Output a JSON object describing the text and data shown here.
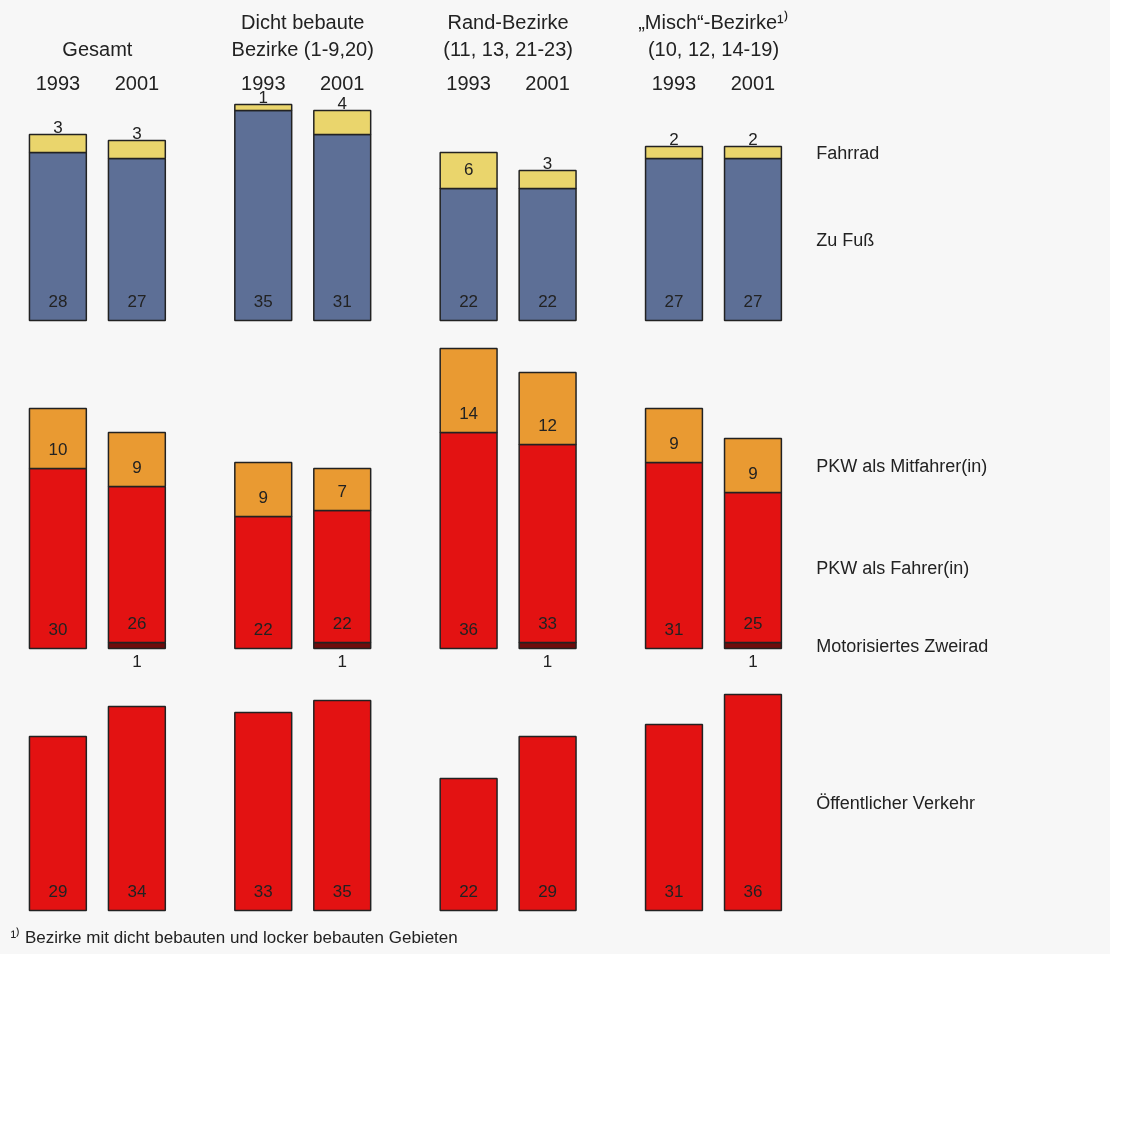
{
  "chart_data": [
    {
      "type": "bar",
      "stacked": true,
      "data_labels": true,
      "categories": [
        "1993",
        "2001",
        "1993",
        "2001",
        "1993",
        "2001",
        "1993",
        "2001"
      ],
      "annotations": [
        "Gesamt",
        "Dicht bebaute\nBezirke (1-9,20)",
        "Rand-Bezirke\n(11, 13, 21-23)",
        "„Misch“-Bezirke¹⁾\n(10, 12, 14-19)"
      ],
      "series": [
        {
          "name": "Zu Fuß",
          "color": "#5d6f96",
          "values": [
            28,
            27,
            35,
            31,
            22,
            22,
            27,
            27
          ]
        },
        {
          "name": "Fahrrad",
          "color": "#ead56c",
          "values": [
            3,
            3,
            1,
            4,
            6,
            3,
            2,
            2
          ]
        }
      ]
    },
    {
      "type": "bar",
      "stacked": true,
      "data_labels": true,
      "tick_labels": false,
      "categories": [
        "1993",
        "2001",
        "1993",
        "2001",
        "1993",
        "2001",
        "1993",
        "2001"
      ],
      "series": [
        {
          "name": "Motorisiertes Zweirad",
          "color": "#6e0c0c",
          "values": [
            null,
            1,
            null,
            1,
            null,
            1,
            null,
            1
          ]
        },
        {
          "name": "PKW als Fahrer(in)",
          "color": "#e31212",
          "values": [
            30,
            26,
            22,
            22,
            36,
            33,
            31,
            25
          ]
        },
        {
          "name": "PKW als Mitfahrer(in)",
          "color": "#e99a32",
          "values": [
            10,
            9,
            9,
            7,
            14,
            12,
            9,
            9
          ]
        }
      ]
    },
    {
      "type": "bar",
      "stacked": true,
      "data_labels": true,
      "tick_labels": false,
      "categories": [
        "1993",
        "2001",
        "1993",
        "2001",
        "1993",
        "2001",
        "1993",
        "2001"
      ],
      "annotations": [
        "¹⁾ Bezirke mit dicht bebauten und locker bebauten Gebieten"
      ],
      "series": [
        {
          "name": "Öffentlicher Verkehr",
          "color": "#e31212",
          "values": [
            29,
            34,
            33,
            35,
            22,
            29,
            31,
            36
          ]
        }
      ]
    }
  ]
}
